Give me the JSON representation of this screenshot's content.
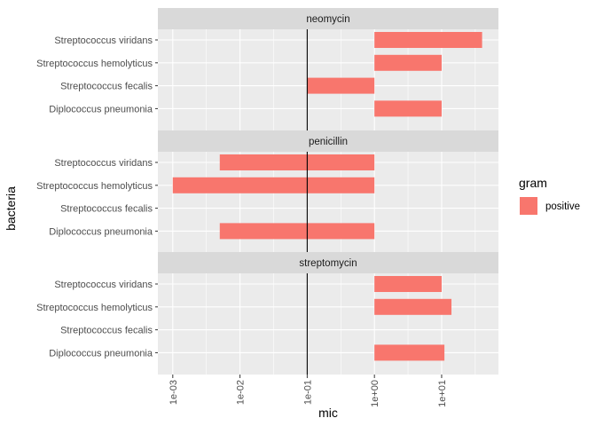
{
  "chart_data": {
    "type": "bar",
    "orientation": "horizontal",
    "x_scale": "log10",
    "xlabel": "mic",
    "ylabel": "bacteria",
    "xlim": [
      0.0006,
      70
    ],
    "x_ticks": [
      0.001,
      0.01,
      0.1,
      1,
      10
    ],
    "x_tick_labels": [
      "1e-03",
      "1e-02",
      "1e-01",
      "1e+00",
      "1e+01"
    ],
    "bar_base": 1,
    "reference_line_x": 0.1,
    "categories": [
      "Streptococcus viridans",
      "Streptococcus hemolyticus",
      "Streptococcus fecalis",
      "Diplococcus pneumonia"
    ],
    "facets": [
      {
        "label": "neomycin",
        "values": [
          40,
          10,
          0.1,
          10
        ]
      },
      {
        "label": "penicillin",
        "values": [
          0.005,
          0.001,
          null,
          0.005
        ]
      },
      {
        "label": "streptomycin",
        "values": [
          10,
          14,
          null,
          11
        ]
      }
    ],
    "legend": {
      "title": "gram",
      "position": "right",
      "entries": [
        {
          "label": "positive",
          "color": "#F8766D"
        }
      ]
    },
    "grid": true,
    "colors": {
      "bar": "#F8766D",
      "panel": "#EBEBEB",
      "strip": "#D9D9D9",
      "grid_major": "#FFFFFF",
      "reference_line": "#000000"
    }
  }
}
